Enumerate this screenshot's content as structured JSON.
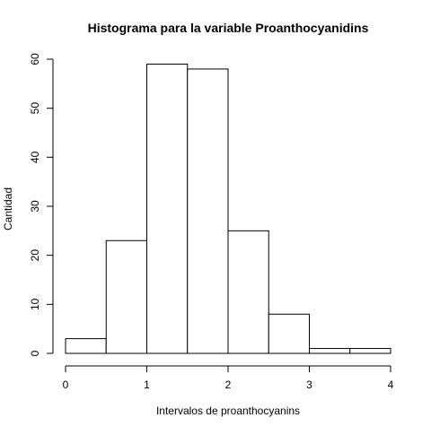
{
  "chart_data": {
    "type": "bar",
    "title": "Histograma para la variable Proanthocyanidins",
    "xlabel": "Intervalos de proanthocyanins",
    "ylabel": "Cantidad",
    "bins": [
      {
        "start": 0.0,
        "end": 0.5,
        "count": 3
      },
      {
        "start": 0.5,
        "end": 1.0,
        "count": 23
      },
      {
        "start": 1.0,
        "end": 1.5,
        "count": 59
      },
      {
        "start": 1.5,
        "end": 2.0,
        "count": 58
      },
      {
        "start": 2.0,
        "end": 2.5,
        "count": 25
      },
      {
        "start": 2.5,
        "end": 3.0,
        "count": 8
      },
      {
        "start": 3.0,
        "end": 3.5,
        "count": 1
      },
      {
        "start": 3.5,
        "end": 4.0,
        "count": 1
      }
    ],
    "xlim": [
      0,
      4
    ],
    "ylim": [
      0,
      60
    ],
    "xticks": [
      0,
      1,
      2,
      3,
      4
    ],
    "yticks": [
      0,
      10,
      20,
      30,
      40,
      50,
      60
    ],
    "grid": false,
    "colors": {
      "bar_fill": "#ffffff",
      "bar_stroke": "#000000",
      "axis": "#000000",
      "background": "#ffffff"
    }
  }
}
